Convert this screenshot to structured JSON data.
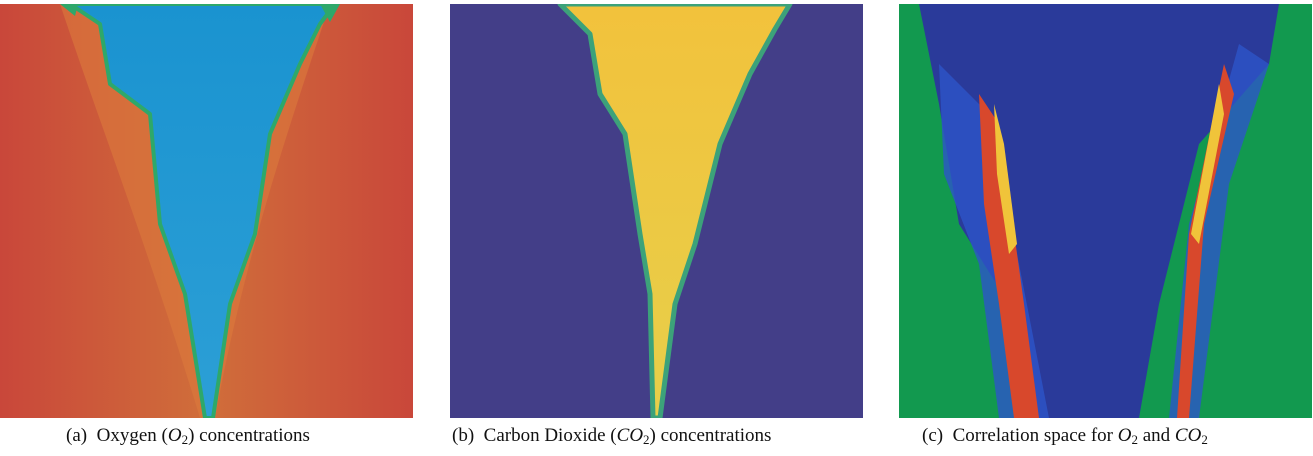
{
  "figures": [
    {
      "label": "(a)",
      "text_before": "Oxygen (",
      "symbol": "O",
      "subscript": "2",
      "text_middle": ") concentrations",
      "symbol2": "",
      "subscript2": "",
      "colors": {
        "background": "#c8493a",
        "plume": "#1f92cf",
        "edge": "#2ea86a"
      }
    },
    {
      "label": "(b)",
      "text_before": "Carbon Dioxide (",
      "symbol": "CO",
      "subscript": "2",
      "text_middle": ") concentrations",
      "symbol2": "",
      "subscript2": "",
      "colors": {
        "background": "#433e88",
        "plume": "#eac43c",
        "edge": "#3ca27a"
      }
    },
    {
      "label": "(c)",
      "text_before": "Correlation space for ",
      "symbol": "O",
      "subscript": "2",
      "text_middle": " and ",
      "symbol2": "CO",
      "subscript2": "2",
      "colors": {
        "background": "#12994f",
        "plume": "#2a3a9a",
        "band": "#d8482c"
      }
    }
  ]
}
